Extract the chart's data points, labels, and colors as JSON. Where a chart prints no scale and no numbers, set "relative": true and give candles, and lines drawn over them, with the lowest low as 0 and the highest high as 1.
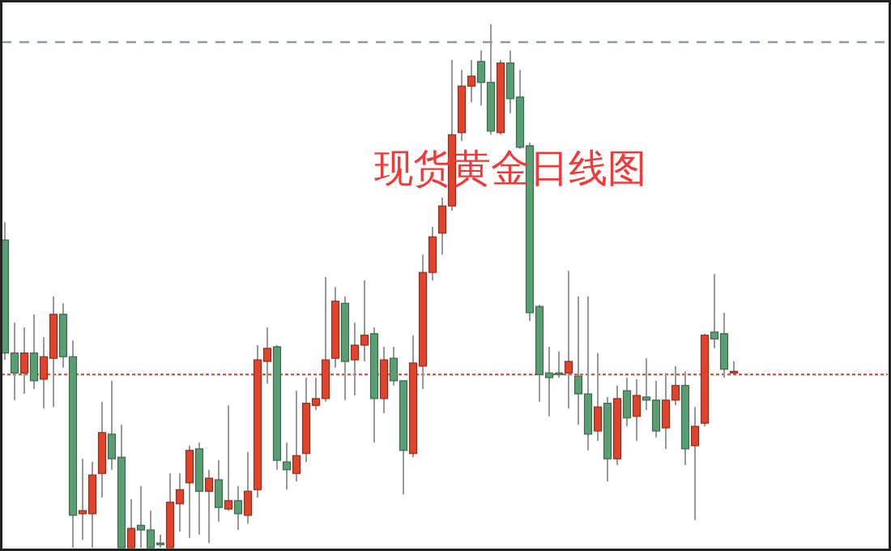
{
  "chart_data": {
    "type": "candlestick",
    "title": "现货黄金日线图",
    "relative": true,
    "categories": [
      null,
      null,
      null,
      null,
      null,
      null,
      null,
      null,
      null,
      null,
      null,
      null,
      null,
      null,
      null,
      null,
      null,
      null,
      null,
      null,
      null,
      null,
      null,
      null,
      null,
      null,
      null,
      null,
      null,
      null,
      null,
      null,
      null,
      null,
      null,
      null,
      null,
      null,
      null,
      null,
      null,
      null,
      null,
      null,
      null,
      null,
      null,
      null,
      null,
      null,
      null,
      null,
      null,
      null,
      null,
      null,
      null,
      null,
      null,
      null,
      null,
      null,
      null,
      null,
      null,
      null,
      null,
      null,
      null,
      null,
      null,
      null,
      null,
      null,
      null,
      null,
      null,
      null,
      null,
      null,
      null,
      null,
      null,
      null,
      null,
      null,
      null,
      null,
      null,
      null,
      null
    ],
    "ohlc": [
      [
        0.588,
        0.622,
        0.359,
        0.372
      ],
      [
        0.372,
        0.43,
        0.282,
        0.334
      ],
      [
        0.334,
        0.421,
        0.294,
        0.372
      ],
      [
        0.372,
        0.446,
        0.303,
        0.319
      ],
      [
        0.322,
        0.402,
        0.266,
        0.365
      ],
      [
        0.362,
        0.48,
        0.269,
        0.446
      ],
      [
        0.446,
        0.467,
        0.344,
        0.365
      ],
      [
        0.365,
        0.396,
        0,
        0.062
      ],
      [
        0.065,
        0.17,
        0.015,
        0.071
      ],
      [
        0.065,
        0.164,
        0,
        0.139
      ],
      [
        0.142,
        0.279,
        0.096,
        0.22
      ],
      [
        0.217,
        0.319,
        0.149,
        0.17
      ],
      [
        0.173,
        0.235,
        0,
        0
      ],
      [
        0,
        0.093,
        0,
        0.037
      ],
      [
        0.043,
        0.118,
        0,
        0.034
      ],
      [
        0.034,
        0.071,
        0,
        0
      ],
      [
        0.006,
        0.025,
        0,
        0.009
      ],
      [
        0,
        0.142,
        0,
        0.087
      ],
      [
        0.084,
        0.142,
        0.031,
        0.111
      ],
      [
        0.124,
        0.195,
        0.019,
        0.186
      ],
      [
        0.189,
        0.201,
        0.025,
        0.108
      ],
      [
        0.108,
        0.149,
        0.009,
        0.133
      ],
      [
        0.13,
        0.167,
        0.05,
        0.077
      ],
      [
        0.074,
        0.272,
        0.071,
        0.09
      ],
      [
        0.09,
        0.118,
        0.034,
        0.065
      ],
      [
        0.062,
        0.183,
        0.046,
        0.108
      ],
      [
        0.111,
        0.387,
        0.096,
        0.359
      ],
      [
        0.356,
        0.421,
        0.313,
        0.381
      ],
      [
        0.384,
        0.387,
        0.149,
        0.167
      ],
      [
        0.164,
        0.201,
        0.111,
        0.149
      ],
      [
        0.142,
        0.3,
        0.127,
        0.176
      ],
      [
        0.18,
        0.325,
        0.164,
        0.276
      ],
      [
        0.272,
        0.325,
        0.263,
        0.285
      ],
      [
        0.285,
        0.517,
        0.279,
        0.359
      ],
      [
        0.362,
        0.498,
        0.344,
        0.471
      ],
      [
        0.467,
        0.48,
        0.282,
        0.356
      ],
      [
        0.359,
        0.43,
        0.291,
        0.387
      ],
      [
        0.387,
        0.511,
        0.356,
        0.406
      ],
      [
        0.409,
        0.421,
        0.201,
        0.285
      ],
      [
        0.285,
        0.384,
        0.257,
        0.359
      ],
      [
        0.362,
        0.384,
        0.31,
        0.319
      ],
      [
        0.319,
        0.319,
        0.102,
        0.186
      ],
      [
        0.18,
        0.406,
        0.173,
        0.353
      ],
      [
        0.347,
        0.56,
        0.303,
        0.526
      ],
      [
        0.526,
        0.613,
        0.511,
        0.594
      ],
      [
        0.601,
        0.669,
        0.56,
        0.653
      ],
      [
        0.653,
        0.932,
        0.644,
        0.789
      ],
      [
        0.793,
        0.913,
        0.777,
        0.882
      ],
      [
        0.882,
        0.932,
        0.851,
        0.901
      ],
      [
        0.929,
        0.95,
        0.845,
        0.889
      ],
      [
        0.889,
        1,
        0.789,
        0.796
      ],
      [
        0.793,
        0.932,
        0.789,
        0.926
      ],
      [
        0.926,
        0.95,
        0.83,
        0.858
      ],
      [
        0.861,
        0.913,
        0.762,
        0.765
      ],
      [
        0.768,
        0.774,
        0.433,
        0.449
      ],
      [
        0.461,
        0.464,
        0.279,
        0.331
      ],
      [
        0.334,
        0.384,
        0.251,
        0.325
      ],
      [
        0.334,
        0.375,
        0.325,
        0.331
      ],
      [
        0.334,
        0.529,
        0.266,
        0.356
      ],
      [
        0.328,
        0.48,
        0.235,
        0.294
      ],
      [
        0.294,
        0.48,
        0.186,
        0.217
      ],
      [
        0.223,
        0.372,
        0.204,
        0.269
      ],
      [
        0.276,
        0.288,
        0.127,
        0.17
      ],
      [
        0.17,
        0.31,
        0.158,
        0.285
      ],
      [
        0.3,
        0.325,
        0.232,
        0.248
      ],
      [
        0.251,
        0.322,
        0.204,
        0.291
      ],
      [
        0.288,
        0.362,
        0.263,
        0.282
      ],
      [
        0.282,
        0.319,
        0.211,
        0.223
      ],
      [
        0.229,
        0.334,
        0.189,
        0.282
      ],
      [
        0.282,
        0.347,
        0.272,
        0.31
      ],
      [
        0.31,
        0.337,
        0.158,
        0.189
      ],
      [
        0.195,
        0.269,
        0.053,
        0.232
      ],
      [
        0.238,
        0.409,
        0.232,
        0.406
      ],
      [
        0.412,
        0.523,
        0.381,
        0.399
      ],
      [
        0.409,
        0.449,
        0.325,
        0.341
      ],
      [
        0.334,
        0.356,
        0.334,
        0.337
      ],
      null,
      null,
      null,
      null,
      null,
      null,
      null,
      null,
      null,
      null,
      null,
      null,
      null,
      null,
      null
    ],
    "colors": [
      "#5a9e74",
      "#5a9e74",
      "#e0442c",
      "#5a9e74",
      "#e0442c",
      "#e0442c",
      "#5a9e74",
      "#5a9e74",
      "#e0442c",
      "#e0442c",
      "#e0442c",
      "#5a9e74",
      "#5a9e74",
      "#e0442c",
      "#5a9e74",
      "#5a9e74",
      "#5a9e74",
      "#e0442c",
      "#e0442c",
      "#e0442c",
      "#5a9e74",
      "#e0442c",
      "#5a9e74",
      "#e0442c",
      "#5a9e74",
      "#e0442c",
      "#e0442c",
      "#e0442c",
      "#5a9e74",
      "#5a9e74",
      "#e0442c",
      "#e0442c",
      "#e0442c",
      "#e0442c",
      "#e0442c",
      "#5a9e74",
      "#e0442c",
      "#e0442c",
      "#5a9e74",
      "#e0442c",
      "#5a9e74",
      "#5a9e74",
      "#e0442c",
      "#e0442c",
      "#e0442c",
      "#e0442c",
      "#e0442c",
      "#e0442c",
      "#e0442c",
      "#5a9e74",
      "#5a9e74",
      "#e0442c",
      "#5a9e74",
      "#5a9e74",
      "#5a9e74",
      "#5a9e74",
      "#5a9e74",
      "#5a9e74",
      "#e0442c",
      "#5a9e74",
      "#5a9e74",
      "#e0442c",
      "#5a9e74",
      "#e0442c",
      "#5a9e74",
      "#e0442c",
      "#5a9e74",
      "#5a9e74",
      "#e0442c",
      "#e0442c",
      "#5a9e74",
      "#e0442c",
      "#e0442c",
      "#5a9e74",
      "#5a9e74",
      "#e0442c",
      null,
      null,
      null,
      null,
      null,
      null,
      null,
      null,
      null,
      null,
      null,
      null,
      null,
      null,
      null
    ],
    "ref_lines": [
      {
        "axis": "y",
        "value": 0.966,
        "color": "#8a9aac",
        "line_style": "dashed"
      },
      {
        "axis": "y",
        "value": 0.331,
        "color": "#e8503a",
        "line_style": "dotted"
      }
    ]
  }
}
